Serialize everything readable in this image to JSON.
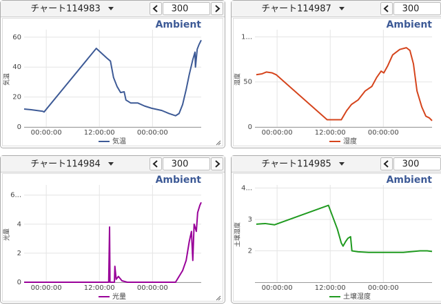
{
  "panels": [
    {
      "title": "チャート114983",
      "count": 300
    },
    {
      "title": "チャート114987",
      "count": 300
    },
    {
      "title": "チャート114984",
      "count": 300
    },
    {
      "title": "チャート114985",
      "count": 300
    }
  ],
  "chart_data": [
    {
      "type": "line",
      "title": "Ambient",
      "y_label": "気温",
      "xlim": [
        -5,
        35
      ],
      "xticks": [
        {
          "value": 0,
          "label": "00:00:00"
        },
        {
          "value": 12,
          "label": "12:00:00"
        },
        {
          "value": 24,
          "label": "00:00:00"
        }
      ],
      "ylim": [
        0,
        65
      ],
      "yticks": [
        0,
        20,
        40,
        60
      ],
      "grid": true,
      "series": [
        {
          "name": "気温",
          "color": "#3d5a96",
          "x": [
            -5,
            -3.4,
            -0.8,
            -0.5,
            11.3,
            13.7,
            14.5,
            15.2,
            16,
            16.8,
            17.6,
            18,
            19.1,
            20.7,
            22.2,
            23.8,
            26.1,
            27.7,
            29.2,
            30,
            30.8,
            31.6,
            32.3,
            33.1,
            33.6,
            33.7,
            34.1,
            34.5,
            35
          ],
          "values": [
            12,
            11.5,
            10.5,
            10,
            52.5,
            46,
            44,
            33,
            27,
            23,
            23.5,
            18,
            16,
            16,
            14,
            12.5,
            11,
            9,
            7.5,
            9,
            15,
            25,
            35,
            45,
            50,
            40,
            52,
            55,
            58
          ]
        }
      ]
    },
    {
      "type": "line",
      "title": "Ambient",
      "y_label": "湿度",
      "xlim": [
        -5,
        35
      ],
      "xticks": [
        {
          "value": 0,
          "label": "00:00:00"
        },
        {
          "value": 12,
          "label": "12:00:00"
        },
        {
          "value": 24,
          "label": "00:00:00"
        }
      ],
      "ylim": [
        0,
        108
      ],
      "yticks": [
        0,
        50,
        {
          "value": 100,
          "label": "1..."
        }
      ],
      "grid": true,
      "series": [
        {
          "name": "湿度",
          "color": "#d5441c",
          "x": [
            -4.7,
            -3.4,
            -2.4,
            -1.1,
            -0.2,
            11.3,
            14.5,
            15.7,
            16.8,
            18.3,
            19.9,
            21.4,
            22.5,
            23.5,
            24.1,
            25,
            26.1,
            27.7,
            29.2,
            30,
            30.8,
            31.6,
            32.7,
            33.6,
            34.4,
            35
          ],
          "values": [
            58,
            59,
            61,
            60,
            58,
            8,
            8,
            18,
            25,
            30,
            40,
            45,
            55,
            62,
            60,
            68,
            80,
            86,
            88,
            85,
            70,
            40,
            22,
            12,
            10,
            7
          ]
        }
      ]
    },
    {
      "type": "line",
      "title": "Ambient",
      "y_label": "光量",
      "xlim": [
        -5,
        35
      ],
      "xticks": [
        {
          "value": 0,
          "label": "00:00:00"
        },
        {
          "value": 12,
          "label": "12:00:00"
        },
        {
          "value": 24,
          "label": "00:00:00"
        }
      ],
      "ylim": [
        0,
        6.7
      ],
      "yticks": [
        0,
        2,
        4,
        {
          "value": 6,
          "label": "6..."
        }
      ],
      "grid": true,
      "series": [
        {
          "name": "光量",
          "color": "#990099",
          "x": [
            -5,
            14.1,
            14.3,
            14.4,
            15.4,
            15.5,
            15.8,
            16.3,
            17.1,
            18.3,
            29.2,
            30.8,
            31.6,
            32.3,
            32.8,
            33.1,
            33.4,
            33.9,
            34.2,
            34.7,
            35
          ],
          "values": [
            0,
            0,
            3.8,
            0,
            0,
            1.1,
            0.2,
            0.4,
            0.1,
            0,
            0,
            0.8,
            1.5,
            2.8,
            3.5,
            1.5,
            4,
            3.5,
            4.8,
            5.3,
            5.5
          ]
        }
      ]
    },
    {
      "type": "line",
      "title": "Ambient",
      "y_label": "土壌湿度",
      "xlim": [
        -5,
        35
      ],
      "xticks": [
        {
          "value": 0,
          "label": "00:00:00"
        },
        {
          "value": 12,
          "label": "12:00:00"
        },
        {
          "value": 24,
          "label": "00:00:00"
        }
      ],
      "ylim": [
        1,
        4.1
      ],
      "yticks": [
        2,
        3,
        {
          "value": 4,
          "label": "4..."
        }
      ],
      "grid": true,
      "series": [
        {
          "name": "土壌湿度",
          "color": "#1f9a1f",
          "x": [
            -4.7,
            -2.7,
            -0.6,
            11.6,
            13.6,
            14.5,
            14.9,
            15.5,
            16,
            16.6,
            16.9,
            18.3,
            20.7,
            28.5,
            30.8,
            32.3,
            33.9,
            35
          ],
          "values": [
            2.85,
            2.87,
            2.83,
            3.45,
            2.7,
            2.25,
            2.15,
            2.3,
            2.4,
            2.45,
            2.0,
            1.97,
            1.95,
            1.95,
            1.98,
            2.0,
            2.0,
            1.98
          ]
        }
      ]
    }
  ]
}
